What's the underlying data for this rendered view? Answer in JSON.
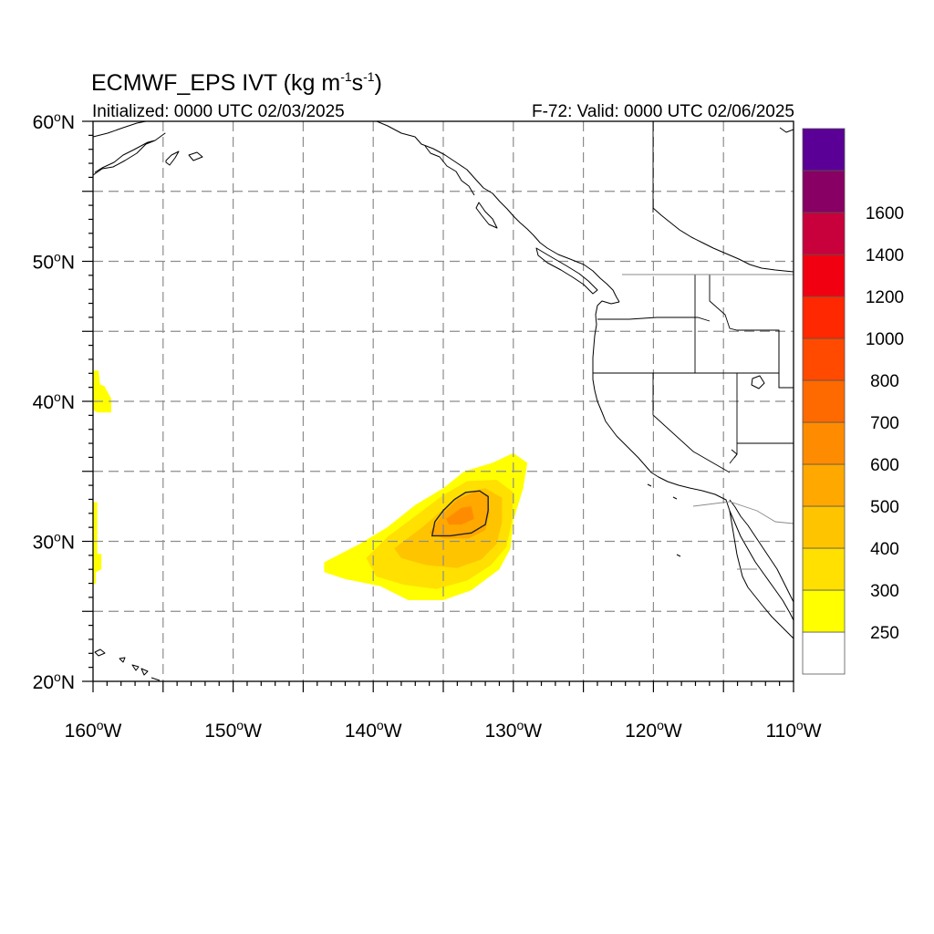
{
  "header": {
    "title_main": "ECMWF_EPS IVT (kg m",
    "title_sup1": "-1",
    "title_mid": "s",
    "title_sup2": "-1",
    "title_end": ")",
    "init_label": "Initialized: 0000 UTC 02/03/2025",
    "valid_label": "F-72: Valid: 0000 UTC 02/06/2025"
  },
  "map": {
    "lon_range": [
      -160,
      -110
    ],
    "lat_range": [
      20,
      60
    ],
    "lat_labels": [
      {
        "lat": 60,
        "num": "60",
        "unit": "N"
      },
      {
        "lat": 50,
        "num": "50",
        "unit": "N"
      },
      {
        "lat": 40,
        "num": "40",
        "unit": "N"
      },
      {
        "lat": 30,
        "num": "30",
        "unit": "N"
      },
      {
        "lat": 20,
        "num": "20",
        "unit": "N"
      }
    ],
    "lon_labels": [
      {
        "lon": -160,
        "num": "160",
        "unit": "W"
      },
      {
        "lon": -150,
        "num": "150",
        "unit": "W"
      },
      {
        "lon": -140,
        "num": "140",
        "unit": "W"
      },
      {
        "lon": -130,
        "num": "130",
        "unit": "W"
      },
      {
        "lon": -120,
        "num": "120",
        "unit": "W"
      },
      {
        "lon": -110,
        "num": "110",
        "unit": "W"
      }
    ],
    "degree_symbol": "o",
    "grid_step": 5,
    "grid": "dashed"
  },
  "ivt_field": {
    "palette": {
      "250": "#ffff00",
      "300": "#ffe000",
      "400": "#ffc400",
      "500": "#ffa800",
      "600": "#ff8c00"
    },
    "regions": [
      {
        "level": "250",
        "points": [
          [
            -143.5,
            28.5
          ],
          [
            -141,
            29.8
          ],
          [
            -139,
            31
          ],
          [
            -137,
            32.6
          ],
          [
            -135,
            33.8
          ],
          [
            -133.5,
            35
          ],
          [
            -131.5,
            35.6
          ],
          [
            -130,
            36.3
          ],
          [
            -129,
            35.6
          ],
          [
            -129.3,
            33.8
          ],
          [
            -130,
            31.5
          ],
          [
            -130.2,
            29.5
          ],
          [
            -131,
            28
          ],
          [
            -133,
            26.5
          ],
          [
            -135,
            25.8
          ],
          [
            -137.5,
            25.8
          ],
          [
            -139.5,
            26.8
          ],
          [
            -142,
            27.3
          ],
          [
            -143.5,
            27.8
          ]
        ]
      },
      {
        "level": "300",
        "points": [
          [
            -140.5,
            28.8
          ],
          [
            -139,
            30.3
          ],
          [
            -137,
            31.8
          ],
          [
            -135,
            33.3
          ],
          [
            -133.3,
            34.3
          ],
          [
            -131.2,
            34.4
          ],
          [
            -130,
            33.5
          ],
          [
            -130.1,
            31.5
          ],
          [
            -130.5,
            29.6
          ],
          [
            -131.6,
            28.3
          ],
          [
            -133.3,
            27.2
          ],
          [
            -135.5,
            26.6
          ],
          [
            -137.8,
            26.9
          ],
          [
            -139.8,
            27.5
          ]
        ]
      },
      {
        "level": "400",
        "points": [
          [
            -138.5,
            29.5
          ],
          [
            -136.5,
            31
          ],
          [
            -135,
            32.3
          ],
          [
            -133.5,
            33.5
          ],
          [
            -132,
            33.8
          ],
          [
            -130.8,
            33.1
          ],
          [
            -130.8,
            31.4
          ],
          [
            -131.2,
            29.8
          ],
          [
            -132.3,
            28.7
          ],
          [
            -134,
            28.1
          ],
          [
            -136.2,
            28.3
          ],
          [
            -138,
            28.8
          ]
        ]
      },
      {
        "level": "500",
        "points": [
          [
            -136,
            30.6
          ],
          [
            -135,
            32
          ],
          [
            -134,
            33
          ],
          [
            -132.6,
            33.6
          ],
          [
            -131.8,
            33.3
          ],
          [
            -131.7,
            32
          ],
          [
            -132,
            30.8
          ],
          [
            -133.2,
            30.2
          ],
          [
            -135,
            30.2
          ]
        ]
      },
      {
        "level": "600",
        "points": [
          [
            -134.8,
            31.6
          ],
          [
            -133.7,
            32.4
          ],
          [
            -133,
            32.5
          ],
          [
            -132.8,
            31.6
          ],
          [
            -133.7,
            31.2
          ],
          [
            -134.6,
            31.2
          ]
        ]
      },
      {
        "level": "250",
        "points": [
          [
            -160,
            42.2
          ],
          [
            -159.6,
            42.2
          ],
          [
            -159.5,
            41.2
          ],
          [
            -159.2,
            41.1
          ],
          [
            -158.7,
            40.2
          ],
          [
            -158.7,
            39.2
          ],
          [
            -159.7,
            39.2
          ],
          [
            -160,
            39.4
          ]
        ]
      },
      {
        "level": "250",
        "points": [
          [
            -160,
            32.8
          ],
          [
            -159.7,
            32.8
          ],
          [
            -159.7,
            29.1
          ],
          [
            -159.4,
            29.1
          ],
          [
            -159.4,
            28
          ],
          [
            -159.8,
            27.8
          ],
          [
            -159.8,
            27
          ],
          [
            -160,
            26.9
          ]
        ]
      }
    ],
    "contour_500": [
      [
        -135.8,
        30.4
      ],
      [
        -135.6,
        31.4
      ],
      [
        -135,
        32.2
      ],
      [
        -134.2,
        33
      ],
      [
        -133.4,
        33.5
      ],
      [
        -132.4,
        33.6
      ],
      [
        -131.8,
        33.2
      ],
      [
        -131.8,
        32.2
      ],
      [
        -132,
        31.2
      ],
      [
        -133,
        30.6
      ],
      [
        -134.5,
        30.4
      ]
    ]
  },
  "colorbar": {
    "colors": [
      "#ffffff",
      "#ffff00",
      "#ffe000",
      "#ffc400",
      "#ffa800",
      "#ff8c00",
      "#ff6a00",
      "#ff4a00",
      "#ff2800",
      "#f00010",
      "#c8003c",
      "#880064",
      "#5a0096"
    ],
    "labels": [
      "250",
      "300",
      "400",
      "500",
      "600",
      "700",
      "800",
      "1000",
      "1200",
      "1400",
      "1600"
    ]
  }
}
